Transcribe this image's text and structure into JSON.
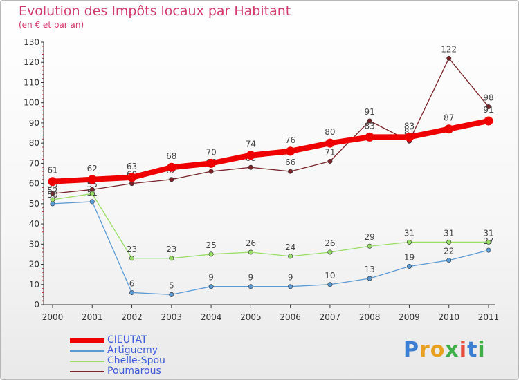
{
  "chart_data": {
    "type": "line",
    "title": "Evolution des Impôts locaux par Habitant",
    "subtitle": "(en € et par an)",
    "x": [
      "2000",
      "2001",
      "2002",
      "2003",
      "2004",
      "2005",
      "2006",
      "2007",
      "2008",
      "2009",
      "2010",
      "2011"
    ],
    "ylim": [
      0,
      130
    ],
    "yticks": [
      0,
      10,
      20,
      30,
      40,
      50,
      60,
      70,
      80,
      90,
      100,
      110,
      120,
      130
    ],
    "grid": false,
    "series": [
      {
        "name": "CIEUTAT",
        "color": "#ee0000",
        "values": [
          61,
          62,
          63,
          68,
          70,
          74,
          76,
          80,
          83,
          83,
          87,
          91
        ]
      },
      {
        "name": "Artiguemy",
        "color": "#5b9bd5",
        "values": [
          50,
          51,
          6,
          5,
          9,
          9,
          9,
          10,
          13,
          19,
          22,
          27
        ]
      },
      {
        "name": "Chelle-Spou",
        "color": "#99dd66",
        "values": [
          52,
          55,
          23,
          23,
          25,
          26,
          24,
          26,
          29,
          31,
          31,
          31
        ]
      },
      {
        "name": "Poumarous",
        "color": "#7a2328",
        "values": [
          55,
          57,
          60,
          62,
          66,
          68,
          66,
          71,
          91,
          81,
          122,
          98
        ]
      }
    ]
  },
  "legend": {
    "position": "bottom-left",
    "items": [
      {
        "label": "CIEUTAT",
        "color": "#ee0000"
      },
      {
        "label": "Artiguemy",
        "color": "#5b9bd5"
      },
      {
        "label": "Chelle-Spou",
        "color": "#99dd66"
      },
      {
        "label": "Poumarous",
        "color": "#7a2328"
      }
    ]
  },
  "logo": {
    "letters": [
      "P",
      "r",
      "o",
      "x",
      "i",
      "t",
      "i"
    ],
    "colors": [
      "#3a7fd4",
      "#e8a021",
      "#e8a021",
      "#3fae49",
      "#e84c3d",
      "#3a7fd4",
      "#3fae49"
    ]
  }
}
